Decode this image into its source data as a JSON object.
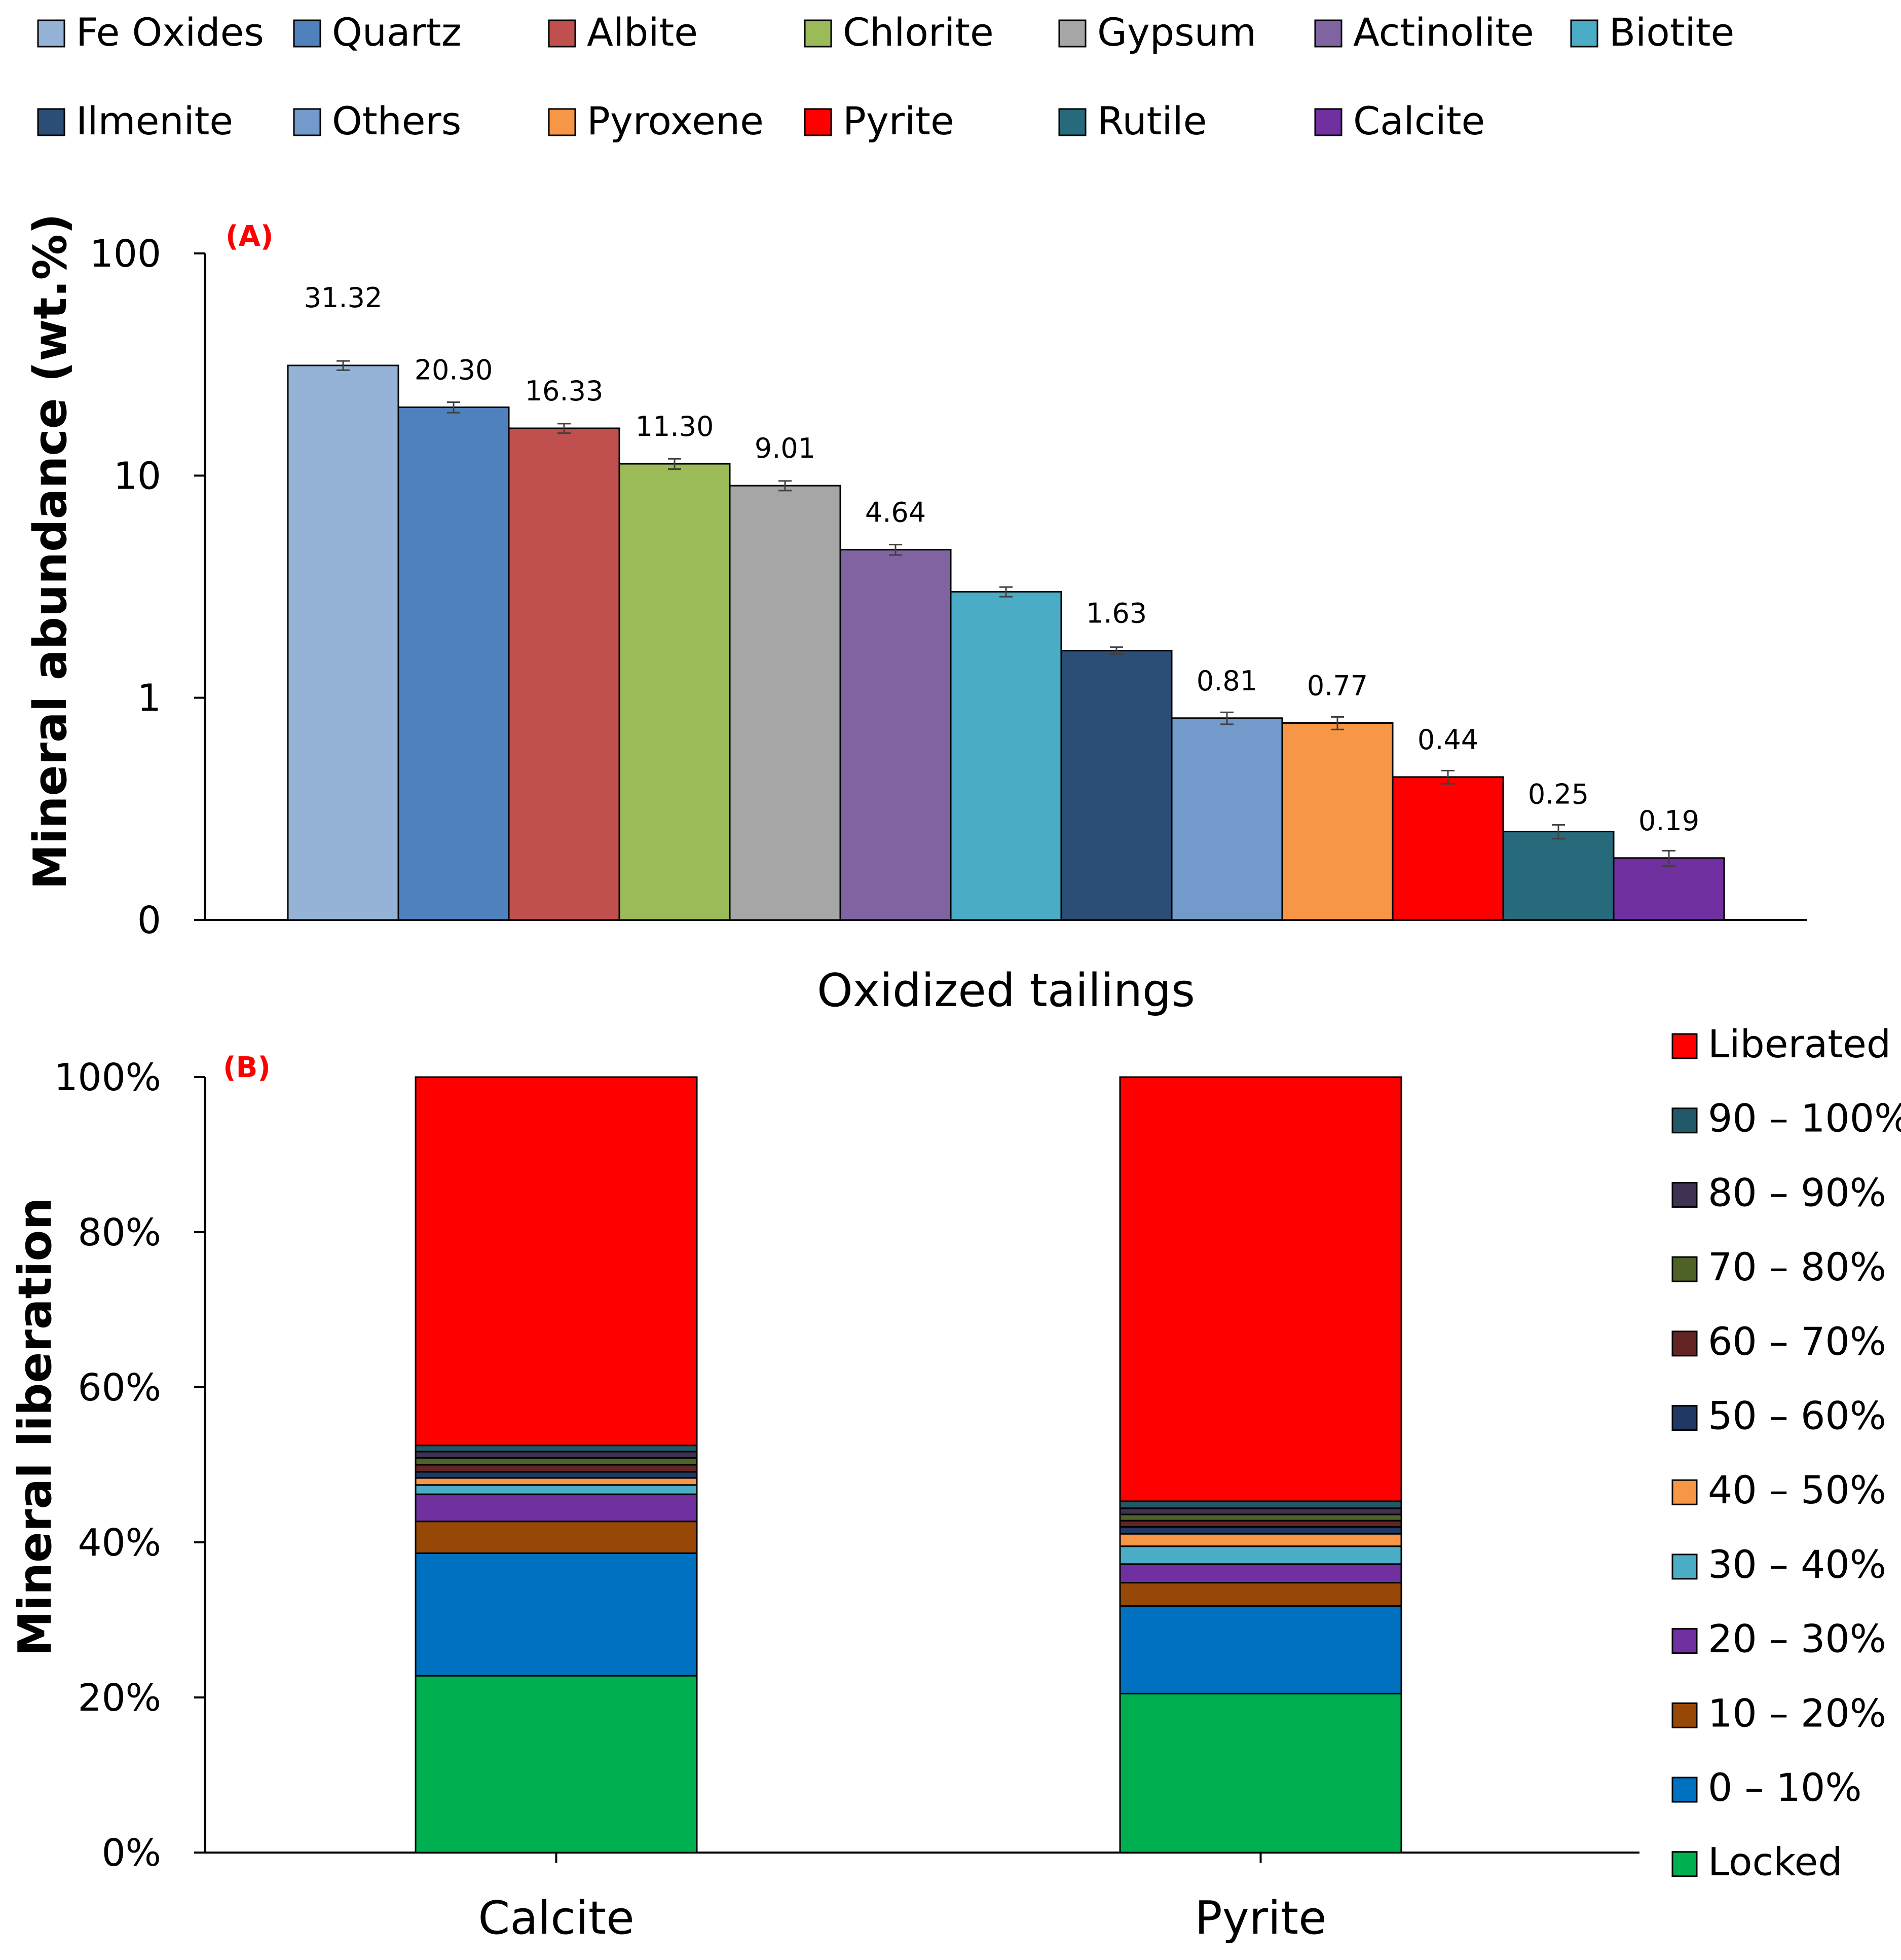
{
  "chart_data": [
    {
      "type": "bar",
      "panel_label": "(A)",
      "xlabel": "Oxidized tailings",
      "ylabel": "Mineral abundance (wt.%)",
      "yscale": "log",
      "ylim": [
        0.1,
        100
      ],
      "yticks": [
        {
          "value": 100,
          "label": "100"
        },
        {
          "value": 10,
          "label": "10"
        },
        {
          "value": 1,
          "label": "1"
        },
        {
          "value": 0.1,
          "label": "0"
        }
      ],
      "error_bars": true,
      "legend_position": "top",
      "categories": [
        "Fe Oxides",
        "Quartz",
        "Albite",
        "Chlorite",
        "Gypsum",
        "Actinolite",
        "Biotite",
        "Ilmenite",
        "Others",
        "Pyroxene",
        "Pyrite",
        "Rutile",
        "Calcite"
      ],
      "values": [
        31.32,
        20.3,
        16.33,
        11.3,
        9.01,
        4.64,
        3.0,
        1.63,
        0.81,
        0.77,
        0.44,
        0.25,
        0.19
      ],
      "errors": [
        1.5,
        1.1,
        0.8,
        0.6,
        0.45,
        0.25,
        0.15,
        0.06,
        0.05,
        0.05,
        0.03,
        0.018,
        0.015
      ],
      "value_labels": [
        "31.32",
        "20.30",
        "16.33",
        "11.30",
        "9.01",
        "4.64",
        null,
        "1.63",
        "0.81",
        "0.77",
        "0.44",
        "0.25",
        "0.19"
      ],
      "colors": [
        "#95b3d7",
        "#4f81bd",
        "#c0504d",
        "#9bbb59",
        "#a6a6a6",
        "#8064a2",
        "#4bacc6",
        "#2c4d75",
        "#729aca",
        "#f79646",
        "#ff0000",
        "#276a7c",
        "#7030a0"
      ]
    },
    {
      "type": "stacked_bar",
      "panel_label": "(B)",
      "ylabel": "Mineral liberation",
      "ylim": [
        0,
        100
      ],
      "yticks": [
        "0%",
        "20%",
        "40%",
        "60%",
        "80%",
        "100%"
      ],
      "legend_position": "right",
      "categories": [
        "Calcite",
        "Pyrite"
      ],
      "series": [
        {
          "name": "Locked",
          "color": "#00b050",
          "values": [
            22.8,
            20.5
          ]
        },
        {
          "name": "0 – 10%",
          "color": "#0070c0",
          "values": [
            15.8,
            11.3
          ]
        },
        {
          "name": "10 – 20%",
          "color": "#974706",
          "values": [
            4.1,
            3.0
          ]
        },
        {
          "name": "20 – 30%",
          "color": "#7030a0",
          "values": [
            3.5,
            2.4
          ]
        },
        {
          "name": "30 – 40%",
          "color": "#4bacc6",
          "values": [
            1.2,
            2.3
          ]
        },
        {
          "name": "40 – 50%",
          "color": "#f79646",
          "values": [
            0.9,
            1.6
          ]
        },
        {
          "name": "50 – 60%",
          "color": "#1f3864",
          "values": [
            0.8,
            0.9
          ]
        },
        {
          "name": "60 – 70%",
          "color": "#632523",
          "values": [
            0.9,
            0.8
          ]
        },
        {
          "name": "70 – 80%",
          "color": "#4f6228",
          "values": [
            0.9,
            0.8
          ]
        },
        {
          "name": "80 – 90%",
          "color": "#3f3151",
          "values": [
            0.8,
            0.8
          ]
        },
        {
          "name": "90 – 100%",
          "color": "#215968",
          "values": [
            0.8,
            0.9
          ]
        },
        {
          "name": "Liberated",
          "color": "#ff0000",
          "values": [
            47.5,
            54.7
          ]
        }
      ]
    }
  ]
}
